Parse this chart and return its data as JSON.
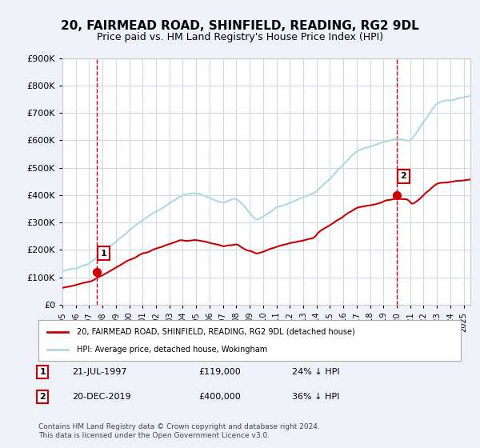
{
  "title": "20, FAIRMEAD ROAD, SHINFIELD, READING, RG2 9DL",
  "subtitle": "Price paid vs. HM Land Registry's House Price Index (HPI)",
  "ylabel_values": [
    "£0",
    "£100K",
    "£200K",
    "£300K",
    "£400K",
    "£500K",
    "£600K",
    "£700K",
    "£800K",
    "£900K"
  ],
  "ylim": [
    0,
    900000
  ],
  "yticks": [
    0,
    100000,
    200000,
    300000,
    400000,
    500000,
    600000,
    700000,
    800000,
    900000
  ],
  "sale1": {
    "date_num": 1997.55,
    "price": 119000,
    "label": "1",
    "annotation": "21-JUL-1997",
    "price_str": "£119,000",
    "hpi_str": "24% ↓ HPI"
  },
  "sale2": {
    "date_num": 2019.97,
    "price": 400000,
    "label": "2",
    "annotation": "20-DEC-2019",
    "price_str": "£400,000",
    "hpi_str": "36% ↓ HPI"
  },
  "hpi_line_color": "#add8e6",
  "price_line_color": "#cc0000",
  "sale_dot_color": "#cc0000",
  "vline_color": "#cc0000",
  "grid_color": "#d0d8e8",
  "background_color": "#eef2f8",
  "plot_bg_color": "#ffffff",
  "legend_label1": "20, FAIRMEAD ROAD, SHINFIELD, READING, RG2 9DL (detached house)",
  "legend_label2": "HPI: Average price, detached house, Wokingham",
  "footer": "Contains HM Land Registry data © Crown copyright and database right 2024.\nThis data is licensed under the Open Government Licence v3.0.",
  "xmin": 1995.0,
  "xmax": 2025.5
}
